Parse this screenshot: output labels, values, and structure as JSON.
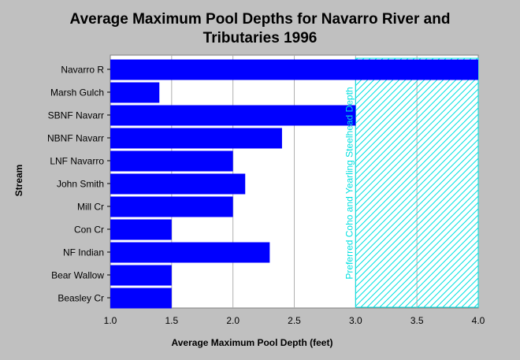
{
  "chart_data": {
    "type": "bar",
    "orientation": "horizontal",
    "title": "Average Maximum Pool Depths for Navarro River and Tributaries 1996",
    "title_lines": [
      "Average Maximum Pool Depths for Navarro River and",
      "Tributaries 1996"
    ],
    "xlabel": "Average Maximum Pool Depth (feet)",
    "ylabel": "Stream",
    "xlim": [
      1.0,
      4.0
    ],
    "x_ticks": [
      "1.0",
      "1.5",
      "2.0",
      "2.5",
      "3.0",
      "3.5",
      "4.0"
    ],
    "categories": [
      "Navarro R",
      "Marsh Gulch",
      "SBNF Navarr",
      "NBNF Navarr",
      "LNF Navarro",
      "John Smith",
      "Mill Cr",
      "Con Cr",
      "NF Indian",
      "Bear Wallow",
      "Beasley Cr"
    ],
    "values": [
      4.0,
      1.4,
      3.0,
      2.4,
      2.0,
      2.1,
      2.0,
      1.5,
      2.3,
      1.5,
      1.5
    ],
    "bar_color": "#0000ff",
    "grid": true,
    "annotation": {
      "label": "Preferred Coho and Yearling Steelhead Depth",
      "range": [
        3.0,
        4.0
      ],
      "color": "#00e0e0"
    }
  }
}
